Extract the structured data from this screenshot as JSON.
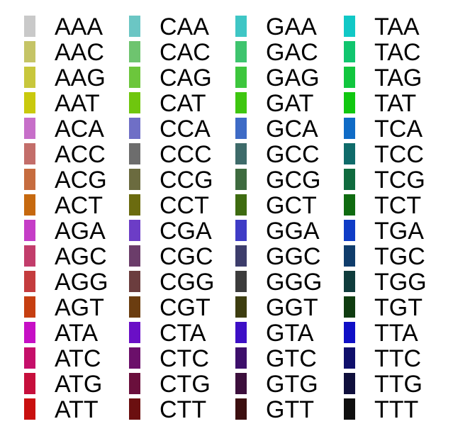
{
  "chart_data": {
    "type": "legend",
    "columns": [
      {
        "entries": [
          {
            "label": "AAA",
            "color": "#c9c9c9"
          },
          {
            "label": "AAC",
            "color": "#c5c466"
          },
          {
            "label": "AAG",
            "color": "#c8c73c"
          },
          {
            "label": "AAT",
            "color": "#c9c90d"
          },
          {
            "label": "ACA",
            "color": "#c76fc9"
          },
          {
            "label": "ACC",
            "color": "#c36e6a"
          },
          {
            "label": "ACG",
            "color": "#c66c3f"
          },
          {
            "label": "ACT",
            "color": "#c6690f"
          },
          {
            "label": "AGA",
            "color": "#c53dc7"
          },
          {
            "label": "AGC",
            "color": "#c23d6b"
          },
          {
            "label": "AGG",
            "color": "#c43c3e"
          },
          {
            "label": "AGT",
            "color": "#c63f11"
          },
          {
            "label": "ATA",
            "color": "#c60fc5"
          },
          {
            "label": "ATC",
            "color": "#c50f6a"
          },
          {
            "label": "ATG",
            "color": "#c60f3c"
          },
          {
            "label": "ATT",
            "color": "#c9100f"
          }
        ]
      },
      {
        "entries": [
          {
            "label": "CAA",
            "color": "#6bc6c4"
          },
          {
            "label": "CAC",
            "color": "#6ec46f"
          },
          {
            "label": "CAG",
            "color": "#6cc63c"
          },
          {
            "label": "CAT",
            "color": "#6fc60e"
          },
          {
            "label": "CCA",
            "color": "#6f6fc6"
          },
          {
            "label": "CCC",
            "color": "#6d6d6d"
          },
          {
            "label": "CCG",
            "color": "#6b6b3f"
          },
          {
            "label": "CCT",
            "color": "#6b6b0f"
          },
          {
            "label": "CGA",
            "color": "#6c3dc6"
          },
          {
            "label": "CGC",
            "color": "#6b3d6a"
          },
          {
            "label": "CGG",
            "color": "#6b3d3e"
          },
          {
            "label": "CGT",
            "color": "#6b3d10"
          },
          {
            "label": "CTA",
            "color": "#6a0fc6"
          },
          {
            "label": "CTC",
            "color": "#6b0f6a"
          },
          {
            "label": "CTG",
            "color": "#6a0f3c"
          },
          {
            "label": "CTT",
            "color": "#6b0f10"
          }
        ]
      },
      {
        "entries": [
          {
            "label": "GAA",
            "color": "#3fc6c5"
          },
          {
            "label": "GAC",
            "color": "#3ec46e"
          },
          {
            "label": "GAG",
            "color": "#3dc63d"
          },
          {
            "label": "GAT",
            "color": "#3ec610"
          },
          {
            "label": "GCA",
            "color": "#3e6bc6"
          },
          {
            "label": "GCC",
            "color": "#3e6b6a"
          },
          {
            "label": "GCG",
            "color": "#3e6b3f"
          },
          {
            "label": "GCT",
            "color": "#3e6b10"
          },
          {
            "label": "GGA",
            "color": "#3f3cc6"
          },
          {
            "label": "GGC",
            "color": "#3d3d6b"
          },
          {
            "label": "GGG",
            "color": "#3c3c3c"
          },
          {
            "label": "GGT",
            "color": "#3d3d10"
          },
          {
            "label": "GTA",
            "color": "#3d0fc6"
          },
          {
            "label": "GTC",
            "color": "#3d0f6b"
          },
          {
            "label": "GTG",
            "color": "#3c0f3c"
          },
          {
            "label": "GTT",
            "color": "#3c0f10"
          }
        ]
      },
      {
        "entries": [
          {
            "label": "TAA",
            "color": "#11c8c6"
          },
          {
            "label": "TAC",
            "color": "#10c56e"
          },
          {
            "label": "TAG",
            "color": "#11c63e"
          },
          {
            "label": "TAT",
            "color": "#10c710"
          },
          {
            "label": "TCA",
            "color": "#0f6bc6"
          },
          {
            "label": "TCC",
            "color": "#0f6b6a"
          },
          {
            "label": "TCG",
            "color": "#0f6b3e"
          },
          {
            "label": "TCT",
            "color": "#0f6b10"
          },
          {
            "label": "TGA",
            "color": "#0f3cc6"
          },
          {
            "label": "TGC",
            "color": "#0f3c6b"
          },
          {
            "label": "TGG",
            "color": "#0f3c3c"
          },
          {
            "label": "TGT",
            "color": "#0f3c10"
          },
          {
            "label": "TTA",
            "color": "#0f0fc6"
          },
          {
            "label": "TTC",
            "color": "#0f0f6b"
          },
          {
            "label": "TTG",
            "color": "#0f0f3c"
          },
          {
            "label": "TTT",
            "color": "#0f0f0f"
          }
        ]
      }
    ]
  }
}
